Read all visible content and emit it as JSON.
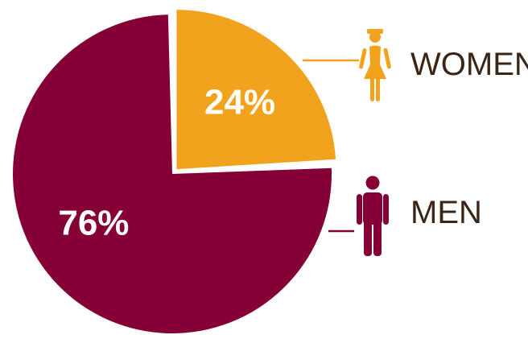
{
  "chart_data": {
    "type": "pie",
    "title": "",
    "slices": [
      {
        "name": "WOMEN",
        "value": 24,
        "label": "24%",
        "color": "#f2a31e",
        "icon": "woman-icon",
        "exploded": true
      },
      {
        "name": "MEN",
        "value": 76,
        "label": "76%",
        "color": "#840035",
        "icon": "man-icon",
        "exploded": false
      }
    ],
    "legend": {
      "placement": "right",
      "text_color": "#3a2516"
    }
  }
}
